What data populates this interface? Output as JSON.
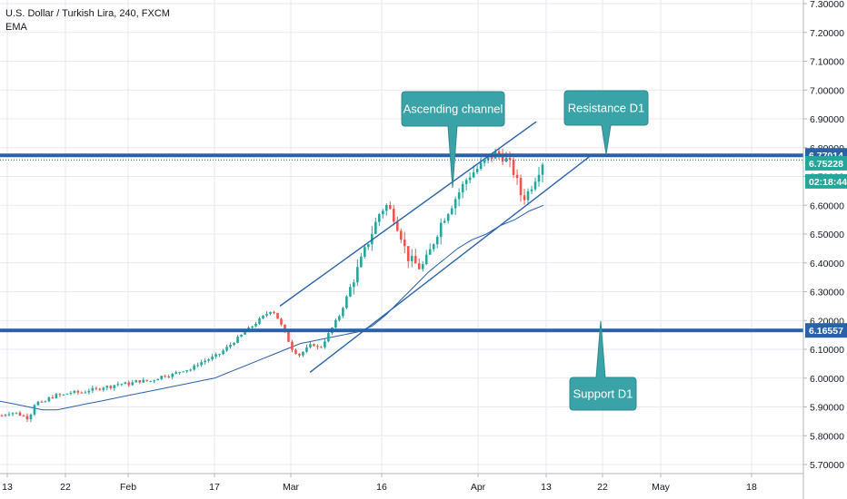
{
  "legend": {
    "symbol": "U.S. Dollar / Turkish Lira, 240, FXCM",
    "indicator": "EMA"
  },
  "colors": {
    "bull": "#26a69a",
    "bear": "#ef5350",
    "line": "#2962a8",
    "callout": "#3aa3a8",
    "ema": "#2a5fa8",
    "axis_text": "#131722",
    "grid": "#e6e9ef"
  },
  "annotations": {
    "ascending_channel": "Ascending channel",
    "resistance": "Resistance D1",
    "support": "Support D1"
  },
  "price_tags": {
    "resistance": "6.77014",
    "current": "6.75228",
    "countdown": "02:18:44",
    "support": "6.16557"
  },
  "chart_data": {
    "type": "candlestick",
    "title": "U.S. Dollar / Turkish Lira, 240, FXCM",
    "ylim": [
      5.66,
      7.32
    ],
    "y_ticks": [
      "5.70000",
      "5.80000",
      "5.90000",
      "6.00000",
      "6.10000",
      "6.20000",
      "6.30000",
      "6.40000",
      "6.50000",
      "6.60000",
      "6.70000",
      "6.80000",
      "6.90000",
      "7.00000",
      "7.10000",
      "7.20000",
      "7.30000"
    ],
    "x_ticks": [
      "13",
      "22",
      "Feb",
      "17",
      "Mar",
      "16",
      "Apr",
      "13",
      "22",
      "May",
      "18"
    ],
    "resistance_level": 6.77014,
    "support_level": 6.16557,
    "current_price": 6.75228,
    "close_path": [
      5.87,
      5.88,
      5.88,
      5.87,
      5.86,
      5.92,
      5.91,
      5.93,
      5.94,
      5.94,
      5.95,
      5.95,
      5.95,
      5.96,
      5.96,
      5.97,
      5.97,
      5.98,
      5.98,
      5.98,
      5.99,
      5.99,
      5.99,
      6.0,
      6.01,
      6.01,
      6.02,
      6.03,
      6.03,
      6.05,
      6.06,
      6.07,
      6.08,
      6.1,
      6.12,
      6.14,
      6.16,
      6.18,
      6.2,
      6.22,
      6.24,
      6.2,
      6.15,
      6.1,
      6.08,
      6.1,
      6.12,
      6.1,
      6.14,
      6.18,
      6.22,
      6.28,
      6.34,
      6.4,
      6.46,
      6.52,
      6.58,
      6.6,
      6.56,
      6.5,
      6.42,
      6.4,
      6.38,
      6.42,
      6.48,
      6.54,
      6.58,
      6.62,
      6.66,
      6.7,
      6.72,
      6.74,
      6.76,
      6.78,
      6.77,
      6.75,
      6.7,
      6.62,
      6.65,
      6.7,
      6.75
    ],
    "ema_path": [
      5.92,
      5.91,
      5.9,
      5.89,
      5.89,
      5.9,
      5.91,
      5.92,
      5.93,
      5.94,
      5.95,
      5.96,
      5.97,
      5.98,
      5.99,
      6.0,
      6.02,
      6.04,
      6.06,
      6.08,
      6.1,
      6.12,
      6.13,
      6.14,
      6.15,
      6.16,
      6.18,
      6.22,
      6.27,
      6.32,
      6.37,
      6.41,
      6.45,
      6.48,
      6.5,
      6.53,
      6.55,
      6.58,
      6.6
    ],
    "trendlines": {
      "channel_upper": [
        [
          6.25
        ],
        [
          6.89
        ]
      ],
      "channel_lower": [
        [
          6.02
        ],
        [
          6.77
        ]
      ]
    }
  }
}
